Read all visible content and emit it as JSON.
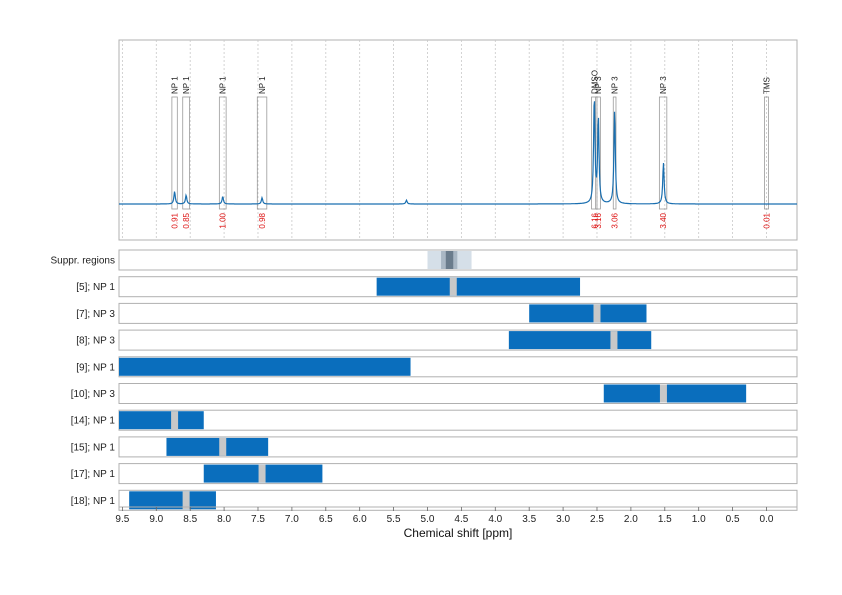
{
  "chart_data": {
    "type": "nmr-spectrum-with-regions",
    "title": "",
    "xlabel": "Chemical shift [ppm]",
    "xlim": [
      9.55,
      -0.45
    ],
    "x_reversed": true,
    "ticks": [
      "9.5",
      "9.0",
      "8.5",
      "8.0",
      "7.5",
      "7.0",
      "6.5",
      "6.0",
      "5.5",
      "5.0",
      "4.5",
      "4.0",
      "3.5",
      "3.0",
      "2.5",
      "2.0",
      "1.5",
      "1.0",
      "0.5",
      "0.0"
    ],
    "grid": true,
    "colors": {
      "spectrum": "#1a6fb0",
      "bar": "#0a6ebd",
      "peak_marker": "#c8c8c8",
      "integral": "#dd1111",
      "suppr_light": "#d5dfe8",
      "suppr_mid": "#a9b7c4",
      "suppr_dark": "#6a7c8c"
    },
    "peaks": [
      {
        "shift": 8.73,
        "label": "NP 1",
        "integral": "0.91",
        "height": 0.1,
        "box": [
          8.77,
          8.69
        ]
      },
      {
        "shift": 8.56,
        "label": "NP 1",
        "integral": "0.85",
        "height": 0.07,
        "box": [
          8.61,
          8.51
        ]
      },
      {
        "shift": 8.02,
        "label": "NP 1",
        "integral": "1.00",
        "height": 0.06,
        "box": [
          8.07,
          7.97
        ]
      },
      {
        "shift": 7.44,
        "label": "NP 1",
        "integral": "0.98",
        "height": 0.05,
        "box": [
          7.51,
          7.37
        ]
      },
      {
        "shift": 2.54,
        "label": "DMSO",
        "integral": "6.16",
        "height": 0.85,
        "box": [
          2.58,
          2.5
        ]
      },
      {
        "shift": 2.48,
        "label": "NP 3",
        "integral": "3.16",
        "height": 0.68,
        "box": [
          2.52,
          2.45
        ]
      },
      {
        "shift": 2.24,
        "label": "NP 3",
        "integral": "3.06",
        "height": 0.75,
        "box": [
          2.26,
          2.22
        ]
      },
      {
        "shift": 1.52,
        "label": "NP 3",
        "integral": "3.40",
        "height": 0.33,
        "box": [
          1.58,
          1.47
        ]
      },
      {
        "shift": 0.0,
        "label": "TMS",
        "integral": "0.01",
        "height": 0.0,
        "box": [
          0.03,
          -0.03
        ]
      }
    ],
    "minor_peaks": [
      {
        "shift": 5.31,
        "height": 0.03
      }
    ],
    "suppressed_regions": {
      "label": "Suppr. regions",
      "bands": [
        {
          "range": [
            5.0,
            4.35
          ],
          "shade": "light"
        },
        {
          "range": [
            4.8,
            4.56
          ],
          "shade": "mid"
        },
        {
          "range": [
            4.73,
            4.62
          ],
          "shade": "dark"
        }
      ]
    },
    "rows": [
      {
        "label": "[5]; NP 1",
        "range": [
          5.75,
          2.75
        ],
        "marker": 4.62
      },
      {
        "label": "[7]; NP 3",
        "range": [
          3.5,
          1.77
        ],
        "marker": 2.5
      },
      {
        "label": "[8]; NP 3",
        "range": [
          3.8,
          1.7
        ],
        "marker": 2.25
      },
      {
        "label": "[9]; NP 1",
        "range": [
          9.55,
          5.25
        ],
        "marker": null
      },
      {
        "label": "[10]; NP 3",
        "range": [
          2.4,
          0.3
        ],
        "marker": 1.52
      },
      {
        "label": "[14]; NP 1",
        "range": [
          9.55,
          8.3
        ],
        "marker": 8.73
      },
      {
        "label": "[15]; NP 1",
        "range": [
          8.85,
          7.35
        ],
        "marker": 8.02
      },
      {
        "label": "[17]; NP 1",
        "range": [
          8.3,
          6.55
        ],
        "marker": 7.44
      },
      {
        "label": "[18]; NP 1",
        "range": [
          9.4,
          8.12
        ],
        "marker": 8.56
      }
    ]
  }
}
